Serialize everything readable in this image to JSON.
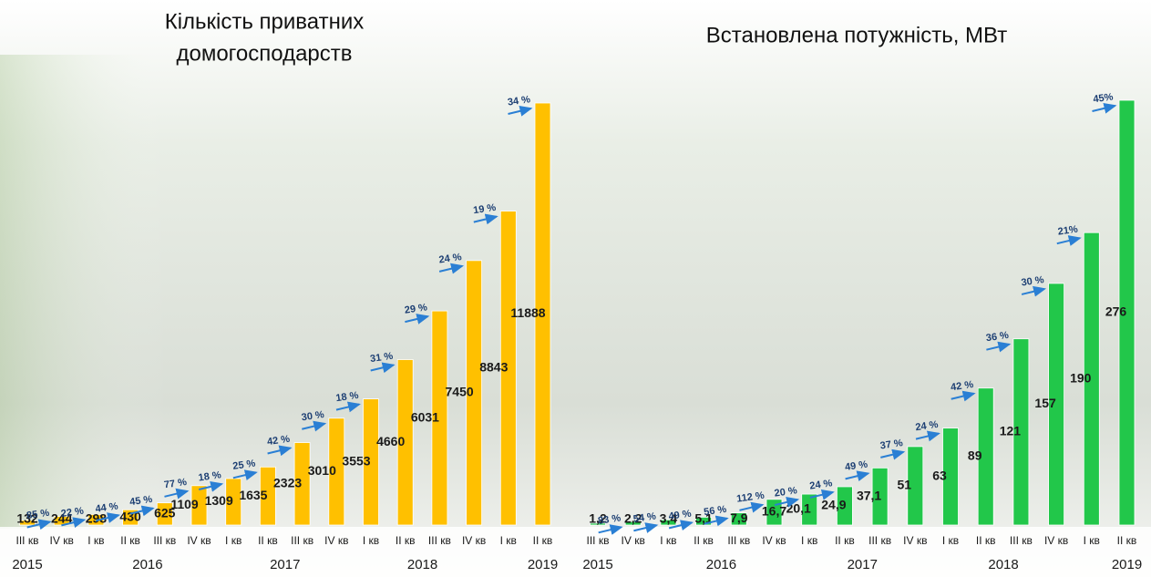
{
  "chart_data": [
    {
      "type": "bar",
      "title": [
        "Кількість приватних",
        "домогосподарств"
      ],
      "categories": [
        "III кв",
        "IV кв",
        "I кв",
        "II кв",
        "III кв",
        "IV кв",
        "I кв",
        "II кв",
        "III кв",
        "IV кв",
        "I кв",
        "II кв",
        "III кв",
        "IV кв",
        "I кв",
        "II кв"
      ],
      "groups": [
        {
          "label": "2015",
          "span": 2
        },
        {
          "label": "2016",
          "span": 4
        },
        {
          "label": "2017",
          "span": 4
        },
        {
          "label": "2018",
          "span": 4
        },
        {
          "label": "2019",
          "span": 2
        }
      ],
      "values": [
        132,
        244,
        298,
        430,
        625,
        1109,
        1309,
        1635,
        2323,
        3010,
        3553,
        4660,
        6031,
        7450,
        8843,
        11888
      ],
      "growth": [
        85,
        22,
        44,
        45,
        77,
        18,
        25,
        42,
        30,
        18,
        31,
        29,
        24,
        19,
        34
      ],
      "growth_labels": [
        "85 %",
        "22 %",
        "44 %",
        "45 %",
        "77 %",
        "18 %",
        "25 %",
        "42 %",
        "30 %",
        "18 %",
        "31 %",
        "29 %",
        "24 %",
        "19 %",
        "34 %"
      ],
      "color": "#ffc000"
    },
    {
      "type": "bar",
      "title": [
        "Встановлена потужність, МВт"
      ],
      "categories": [
        "III кв",
        "IV кв",
        "I кв",
        "II кв",
        "III кв",
        "IV кв",
        "I кв",
        "II кв",
        "III кв",
        "IV кв",
        "I кв",
        "II кв",
        "III кв",
        "IV кв",
        "I кв",
        "II кв"
      ],
      "groups": [
        {
          "label": "2015",
          "span": 2
        },
        {
          "label": "2016",
          "span": 4
        },
        {
          "label": "2017",
          "span": 4
        },
        {
          "label": "2018",
          "span": 4
        },
        {
          "label": "2019",
          "span": 2
        }
      ],
      "values": [
        1.2,
        2.2,
        3.4,
        5.1,
        7.9,
        16.7,
        20.1,
        24.9,
        37.1,
        51,
        63,
        89,
        121,
        157,
        190,
        276
      ],
      "value_labels": [
        "1,2",
        "2,2",
        "3,4",
        "5,1",
        "7,9",
        "16,7",
        "20,1",
        "24,9",
        "37,1",
        "51",
        "63",
        "89",
        "121",
        "157",
        "190",
        "276"
      ],
      "growth": [
        83,
        54,
        49,
        56,
        112,
        20,
        24,
        49,
        37,
        24,
        42,
        36,
        30,
        21,
        45
      ],
      "growth_labels": [
        "83 %",
        "54 %",
        "49 %",
        "56 %",
        "112 %",
        "20 %",
        "24 %",
        "49 %",
        "37 %",
        "24 %",
        "42 %",
        "36 %",
        "30 %",
        "21%",
        "45%"
      ],
      "color": "#22c74a"
    }
  ]
}
